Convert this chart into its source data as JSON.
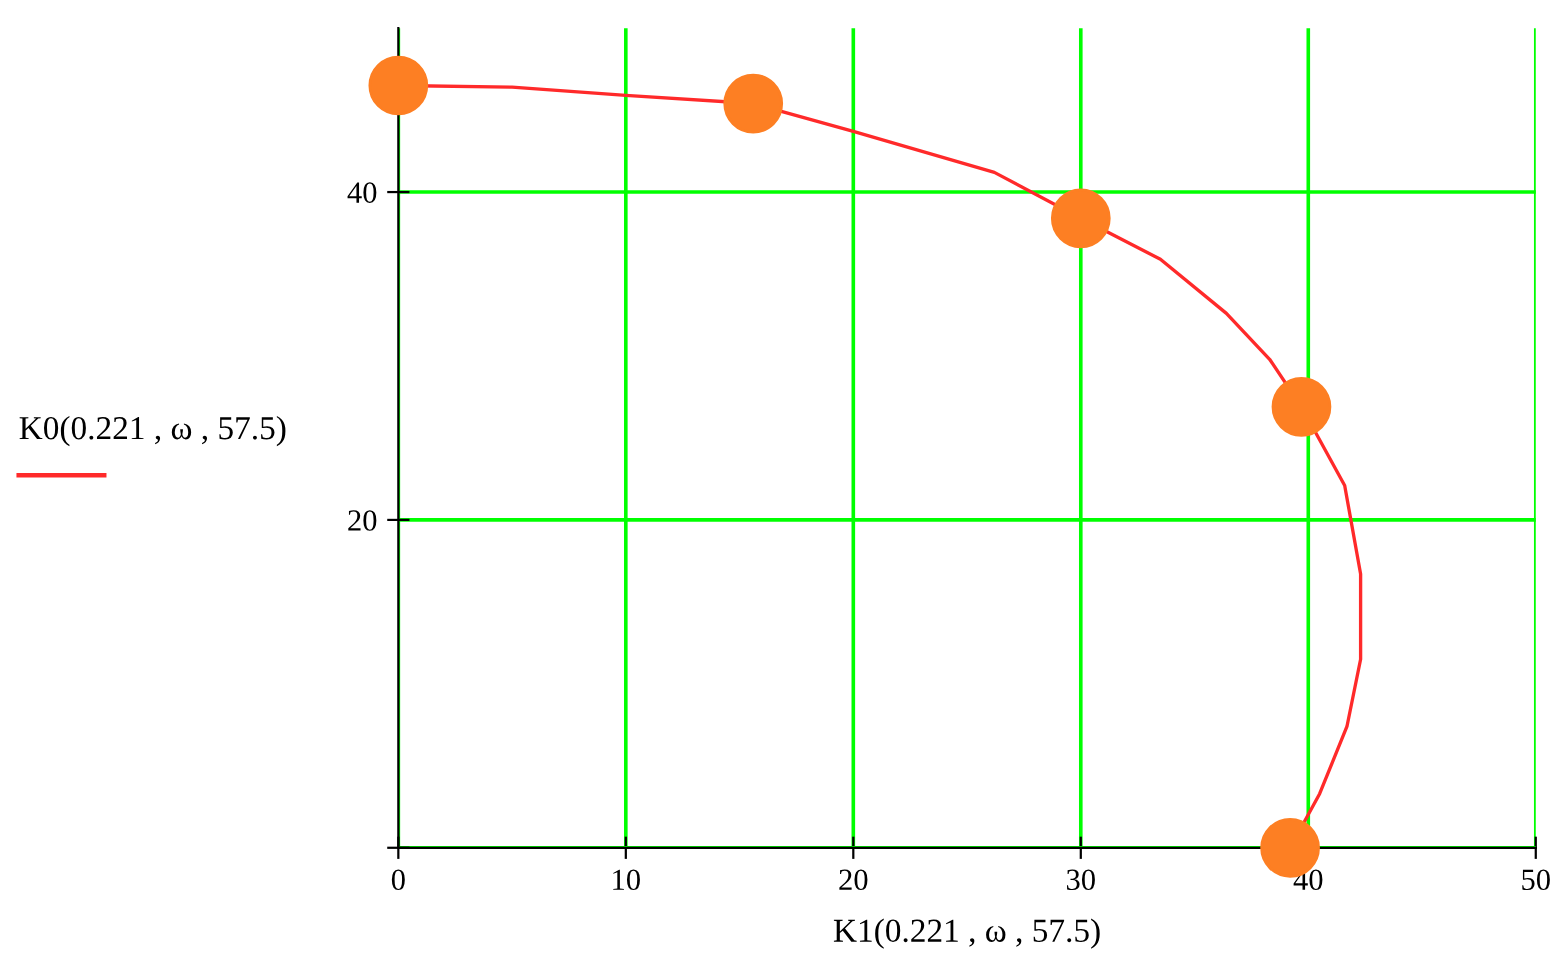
{
  "chart_data": {
    "type": "line",
    "xlabel": "K1(0.221 , ω , 57.5)",
    "legend": "left",
    "xlim": [
      0,
      50
    ],
    "xticks": [
      0,
      10,
      20,
      30,
      40,
      50
    ],
    "ylim": [
      0,
      50
    ],
    "yticks": [
      {
        "value": 0,
        "label": null
      },
      20,
      40
    ],
    "grid": true,
    "line_style": "solid",
    "series": [
      {
        "name": "K0(0.221 , ω , 57.5)",
        "color": "#ff2a2a",
        "marker": "none",
        "x": [
          0,
          5,
          10,
          15.6,
          20,
          26.2,
          30,
          33.5,
          36.4,
          38.3,
          39.7,
          41.6,
          42.3,
          42.3,
          41.7,
          40.5,
          39.2
        ],
        "values": [
          46.5,
          46.4,
          45.9,
          45.4,
          43.7,
          41.2,
          38.4,
          35.9,
          32.6,
          29.8,
          26.9,
          22.1,
          16.7,
          11.5,
          7.4,
          3.3,
          0
        ]
      },
      {
        "color": "#fd7f23",
        "type": "scatter",
        "marker": "circle",
        "x": [
          0,
          15.6,
          30,
          39.7,
          39.2
        ],
        "values": [
          46.5,
          45.4,
          38.4,
          26.9,
          0
        ]
      }
    ]
  }
}
